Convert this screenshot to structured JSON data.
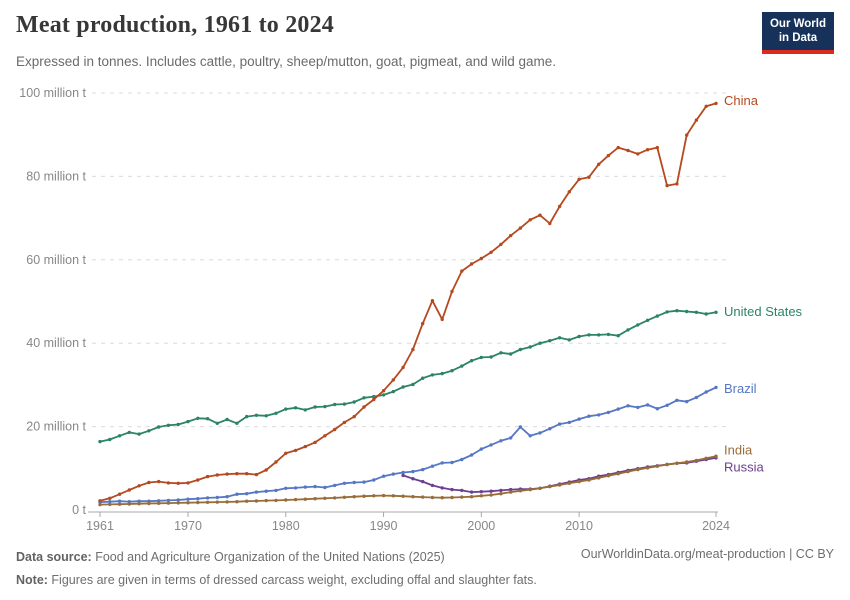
{
  "header": {
    "title": "Meat production, 1961 to 2024",
    "subtitle": "Expressed in tonnes. Includes cattle, poultry, sheep/mutton, goat, pigmeat, and wild game.",
    "logo": {
      "line1": "Our World",
      "line2": "in Data",
      "bg_color": "#16325A",
      "accent_color": "#DC2A20"
    }
  },
  "footer": {
    "data_source_label": "Data source:",
    "data_source_text": " Food and Agriculture Organization of the United Nations (2025)",
    "note_label": "Note:",
    "note_text": " Figures are given in terms of dressed carcass weight, excluding offal and slaughter fats.",
    "credit": "OurWorldinData.org/meat-production | CC BY"
  },
  "chart_data": {
    "type": "line",
    "title": "Meat production, 1961 to 2024",
    "unit": "tonnes",
    "xlim": [
      1961,
      2024
    ],
    "ylim": [
      0,
      100
    ],
    "x_ticks": [
      1961,
      1970,
      1980,
      1990,
      2000,
      2010,
      2024
    ],
    "y_ticks": [
      0,
      20,
      40,
      60,
      80,
      100
    ],
    "y_tick_labels": [
      "0 t",
      "20 million t",
      "40 million t",
      "60 million t",
      "80 million t",
      "100 million t"
    ],
    "grid": "horizontal-dashed",
    "legend_position": "end-of-line",
    "values_unit_note": "values in million tonnes",
    "draw_order": [
      "United States",
      "Brazil",
      "Russia",
      "India",
      "China"
    ],
    "label_offsets": {
      "China": -3,
      "United States": -1,
      "Brazil": 1,
      "India": -6,
      "Russia": 9
    },
    "series": [
      {
        "name": "China",
        "color": "#B5491F",
        "start_year": 1961,
        "values": [
          2.2,
          2.8,
          3.8,
          4.8,
          5.8,
          6.6,
          6.8,
          6.5,
          6.4,
          6.5,
          7.2,
          8.0,
          8.4,
          8.6,
          8.7,
          8.7,
          8.5,
          9.6,
          11.5,
          13.6,
          14.3,
          15.2,
          16.2,
          17.8,
          19.3,
          21.0,
          22.4,
          24.7,
          26.5,
          28.6,
          31.2,
          34.2,
          38.5,
          44.7,
          50.2,
          45.7,
          52.4,
          57.3,
          59.0,
          60.3,
          61.8,
          63.7,
          65.8,
          67.6,
          69.6,
          70.7,
          68.7,
          72.8,
          76.3,
          79.3,
          79.8,
          82.9,
          85.0,
          86.9,
          86.2,
          85.4,
          86.4,
          86.9,
          77.8,
          78.2,
          89.9,
          93.5,
          96.8,
          97.5
        ]
      },
      {
        "name": "United States",
        "color": "#2C8465",
        "start_year": 1961,
        "values": [
          16.4,
          16.9,
          17.8,
          18.6,
          18.2,
          19.0,
          19.9,
          20.3,
          20.5,
          21.2,
          22.0,
          21.9,
          20.8,
          21.7,
          20.8,
          22.4,
          22.7,
          22.6,
          23.2,
          24.2,
          24.5,
          24.0,
          24.7,
          24.8,
          25.3,
          25.4,
          25.9,
          26.9,
          27.2,
          27.6,
          28.4,
          29.5,
          30.1,
          31.6,
          32.4,
          32.7,
          33.4,
          34.5,
          35.8,
          36.6,
          36.7,
          37.7,
          37.4,
          38.5,
          39.1,
          40.0,
          40.6,
          41.3,
          40.8,
          41.6,
          42.0,
          42.0,
          42.1,
          41.8,
          43.2,
          44.4,
          45.5,
          46.5,
          47.5,
          47.8,
          47.6,
          47.4,
          47.0,
          47.4
        ]
      },
      {
        "name": "Brazil",
        "color": "#5577C4",
        "start_year": 1961,
        "values": [
          1.9,
          2.0,
          2.1,
          2.0,
          2.1,
          2.1,
          2.2,
          2.3,
          2.4,
          2.6,
          2.7,
          2.9,
          3.0,
          3.2,
          3.8,
          3.9,
          4.3,
          4.5,
          4.7,
          5.2,
          5.3,
          5.5,
          5.6,
          5.4,
          5.9,
          6.4,
          6.6,
          6.7,
          7.2,
          8.1,
          8.6,
          9.0,
          9.2,
          9.7,
          10.5,
          11.3,
          11.4,
          12.1,
          13.2,
          14.6,
          15.6,
          16.6,
          17.3,
          19.9,
          17.8,
          18.5,
          19.5,
          20.6,
          21.0,
          21.8,
          22.5,
          22.8,
          23.4,
          24.2,
          25.0,
          24.6,
          25.2,
          24.3,
          25.1,
          26.3,
          26.0,
          27.0,
          28.3,
          29.4
        ]
      },
      {
        "name": "India",
        "color": "#996D39",
        "start_year": 1961,
        "values": [
          1.3,
          1.35,
          1.4,
          1.45,
          1.5,
          1.55,
          1.6,
          1.65,
          1.7,
          1.75,
          1.8,
          1.85,
          1.9,
          1.95,
          2.0,
          2.1,
          2.15,
          2.25,
          2.3,
          2.4,
          2.5,
          2.6,
          2.7,
          2.8,
          2.9,
          3.05,
          3.2,
          3.3,
          3.4,
          3.45,
          3.4,
          3.3,
          3.2,
          3.1,
          3.0,
          2.95,
          3.0,
          3.1,
          3.2,
          3.4,
          3.6,
          3.9,
          4.3,
          4.6,
          4.9,
          5.2,
          5.6,
          6.0,
          6.4,
          6.8,
          7.2,
          7.7,
          8.2,
          8.7,
          9.2,
          9.7,
          10.1,
          10.5,
          10.9,
          11.2,
          11.5,
          11.9,
          12.4,
          12.9
        ]
      },
      {
        "name": "Russia",
        "color": "#6D3E91",
        "start_year": 1992,
        "values": [
          8.3,
          7.5,
          6.8,
          5.9,
          5.3,
          4.9,
          4.7,
          4.3,
          4.4,
          4.5,
          4.7,
          4.9,
          5.0,
          5.0,
          5.2,
          5.7,
          6.2,
          6.7,
          7.2,
          7.5,
          8.1,
          8.5,
          9.0,
          9.5,
          9.9,
          10.3,
          10.6,
          10.9,
          11.2,
          11.3,
          11.7,
          12.1,
          12.5
        ]
      }
    ]
  }
}
